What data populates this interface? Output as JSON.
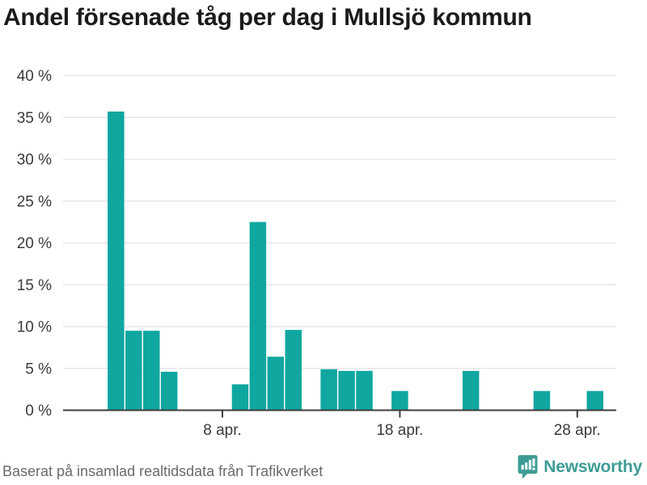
{
  "title": "Andel försenade tåg per dag i Mullsjö kommun",
  "footer": {
    "source_text": "Baserat på insamlad realtidsdata från Trafikverket",
    "brand": "Newsworthy"
  },
  "colors": {
    "bar": "#0fa7a0",
    "brand_teal": "#3e9c95",
    "grid": "#e7e7e7",
    "axis": "#3d3d3d",
    "label": "#3a3a3a",
    "title": "#1b1b1b",
    "footer_text": "#6a6a6a"
  },
  "icons": {
    "logo": "newsworthy-speech-bubble-bar-chart-icon"
  },
  "chart_data": {
    "type": "bar",
    "title": "Andel försenade tåg per dag i Mullsjö kommun",
    "xlabel": "",
    "ylabel": "",
    "categories": [
      "2 apr.",
      "3 apr.",
      "4 apr.",
      "5 apr.",
      "9 apr.",
      "10 apr.",
      "11 apr.",
      "12 apr.",
      "14 apr.",
      "15 apr.",
      "16 apr.",
      "18 apr.",
      "22 apr.",
      "26 apr.",
      "29 apr."
    ],
    "days": [
      2,
      3,
      4,
      5,
      9,
      10,
      11,
      12,
      14,
      15,
      16,
      18,
      22,
      26,
      29
    ],
    "values": [
      35.7,
      9.5,
      9.5,
      4.6,
      3.1,
      22.5,
      6.4,
      9.6,
      4.9,
      4.7,
      4.7,
      2.3,
      4.7,
      2.3,
      2.3
    ],
    "y_ticks": [
      0,
      5,
      10,
      15,
      20,
      25,
      30,
      35,
      40
    ],
    "y_tick_suffix": " %",
    "x_ticks": [
      {
        "day": 8,
        "label": "8 apr."
      },
      {
        "day": 18,
        "label": "18 apr."
      },
      {
        "day": 28,
        "label": "28 apr."
      }
    ],
    "ylim": [
      0,
      42
    ],
    "xlim_days": [
      1,
      31
    ],
    "grid": true,
    "legend": false
  }
}
